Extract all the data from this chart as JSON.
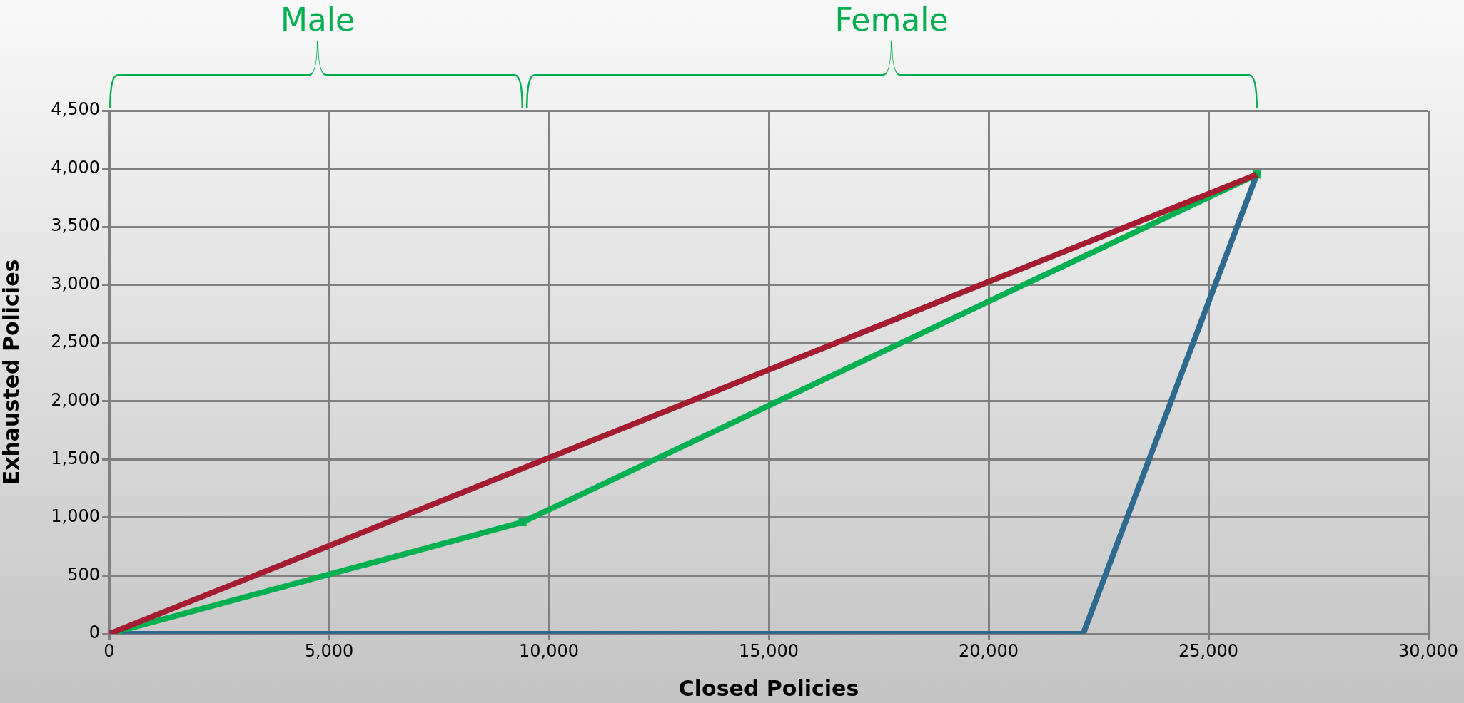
{
  "chart_data": {
    "type": "line",
    "xlabel": "Closed Policies",
    "ylabel": "Exhausted Policies",
    "series": [
      {
        "color": "#a51c30",
        "x": [
          0,
          26100
        ],
        "values": [
          0,
          3950
        ],
        "marker": "none"
      },
      {
        "color": "#00b050",
        "x": [
          0,
          9400,
          26100
        ],
        "values": [
          0,
          960,
          3950
        ],
        "marker": "square"
      },
      {
        "color": "#2e6a8e",
        "x": [
          0,
          22150,
          26100
        ],
        "values": [
          0,
          0,
          3950
        ],
        "marker": "none"
      }
    ],
    "annotations": [
      "Male",
      "Female"
    ],
    "xlim": [
      0,
      30000
    ],
    "xticks": [
      0,
      {
        "value": 5000,
        "label": "5,000"
      },
      {
        "value": 10000,
        "label": "10,000"
      },
      {
        "value": 15000,
        "label": "15,000"
      },
      {
        "value": 20000,
        "label": "20,000"
      },
      {
        "value": 25000,
        "label": "25,000"
      },
      {
        "value": 30000,
        "label": "30,000"
      }
    ],
    "ylim": [
      0,
      4500
    ],
    "yticks": [
      0,
      500,
      {
        "value": 1000,
        "label": "1,000"
      },
      {
        "value": 1500,
        "label": "1,500"
      },
      {
        "value": 2000,
        "label": "2,000"
      },
      {
        "value": 2500,
        "label": "2,500"
      },
      {
        "value": 3000,
        "label": "3,000"
      },
      {
        "value": 3500,
        "label": "3,500"
      },
      {
        "value": 4000,
        "label": "4,000"
      },
      {
        "value": 4500,
        "label": "4,500"
      }
    ],
    "grid": true,
    "legend": false
  }
}
